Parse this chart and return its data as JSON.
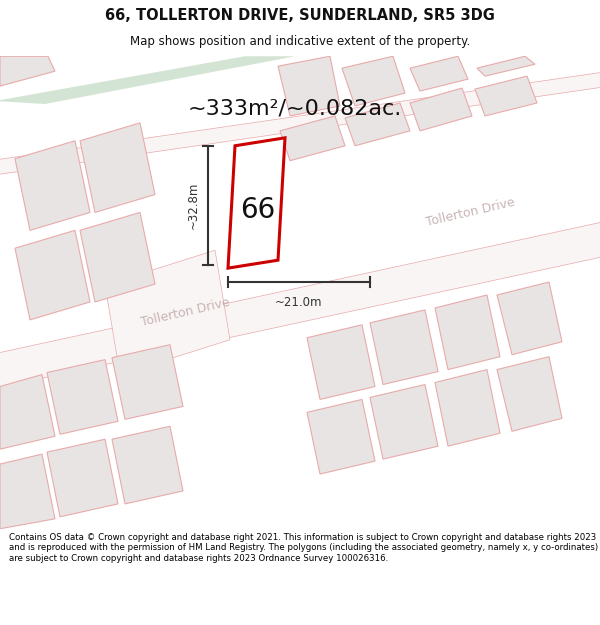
{
  "title": "66, TOLLERTON DRIVE, SUNDERLAND, SR5 3DG",
  "subtitle": "Map shows position and indicative extent of the property.",
  "area_text": "~333m²/~0.082ac.",
  "label_66": "66",
  "dim_width": "~21.0m",
  "dim_height": "~32.8m",
  "road_name_lower": "Tollerton Drive",
  "road_name_upper": "Tollerton Drive",
  "footer_text": "Contains OS data © Crown copyright and database right 2021. This information is subject to Crown copyright and database rights 2023 and is reproduced with the permission of HM Land Registry. The polygons (including the associated geometry, namely x, y co-ordinates) are subject to Crown copyright and database rights 2023 Ordnance Survey 100026316.",
  "bg_color": "#ffffff",
  "map_bg": "#ffffff",
  "green_color": "#d4e4d4",
  "building_fill": "#e8e4e4",
  "building_edge": "#e8aaaa",
  "road_edge": "#e8aaaa",
  "plot_edge": "#cc0000",
  "plot_fill": "#ffffff",
  "dim_color": "#333333",
  "road_label_color": "#c0a8a8",
  "area_color": "#111111",
  "label_color": "#111111",
  "title_color": "#111111",
  "footer_color": "#000000",
  "sep_color": "#cccccc"
}
